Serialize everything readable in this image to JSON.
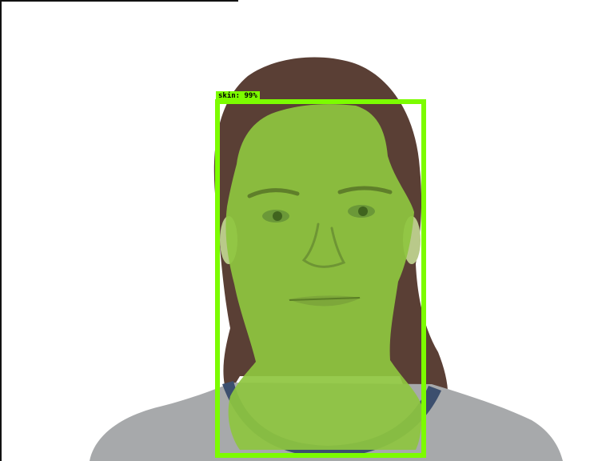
{
  "detection": {
    "label": "skin: 99%",
    "class_name": "skin",
    "score": 0.99
  },
  "colors": {
    "box": "#7cfc00",
    "mask": "#8ec63f",
    "hair": "#5a3f35",
    "sweater": "#a7a9ab",
    "collar": "#3c4f6e",
    "background": "#ffffff"
  }
}
